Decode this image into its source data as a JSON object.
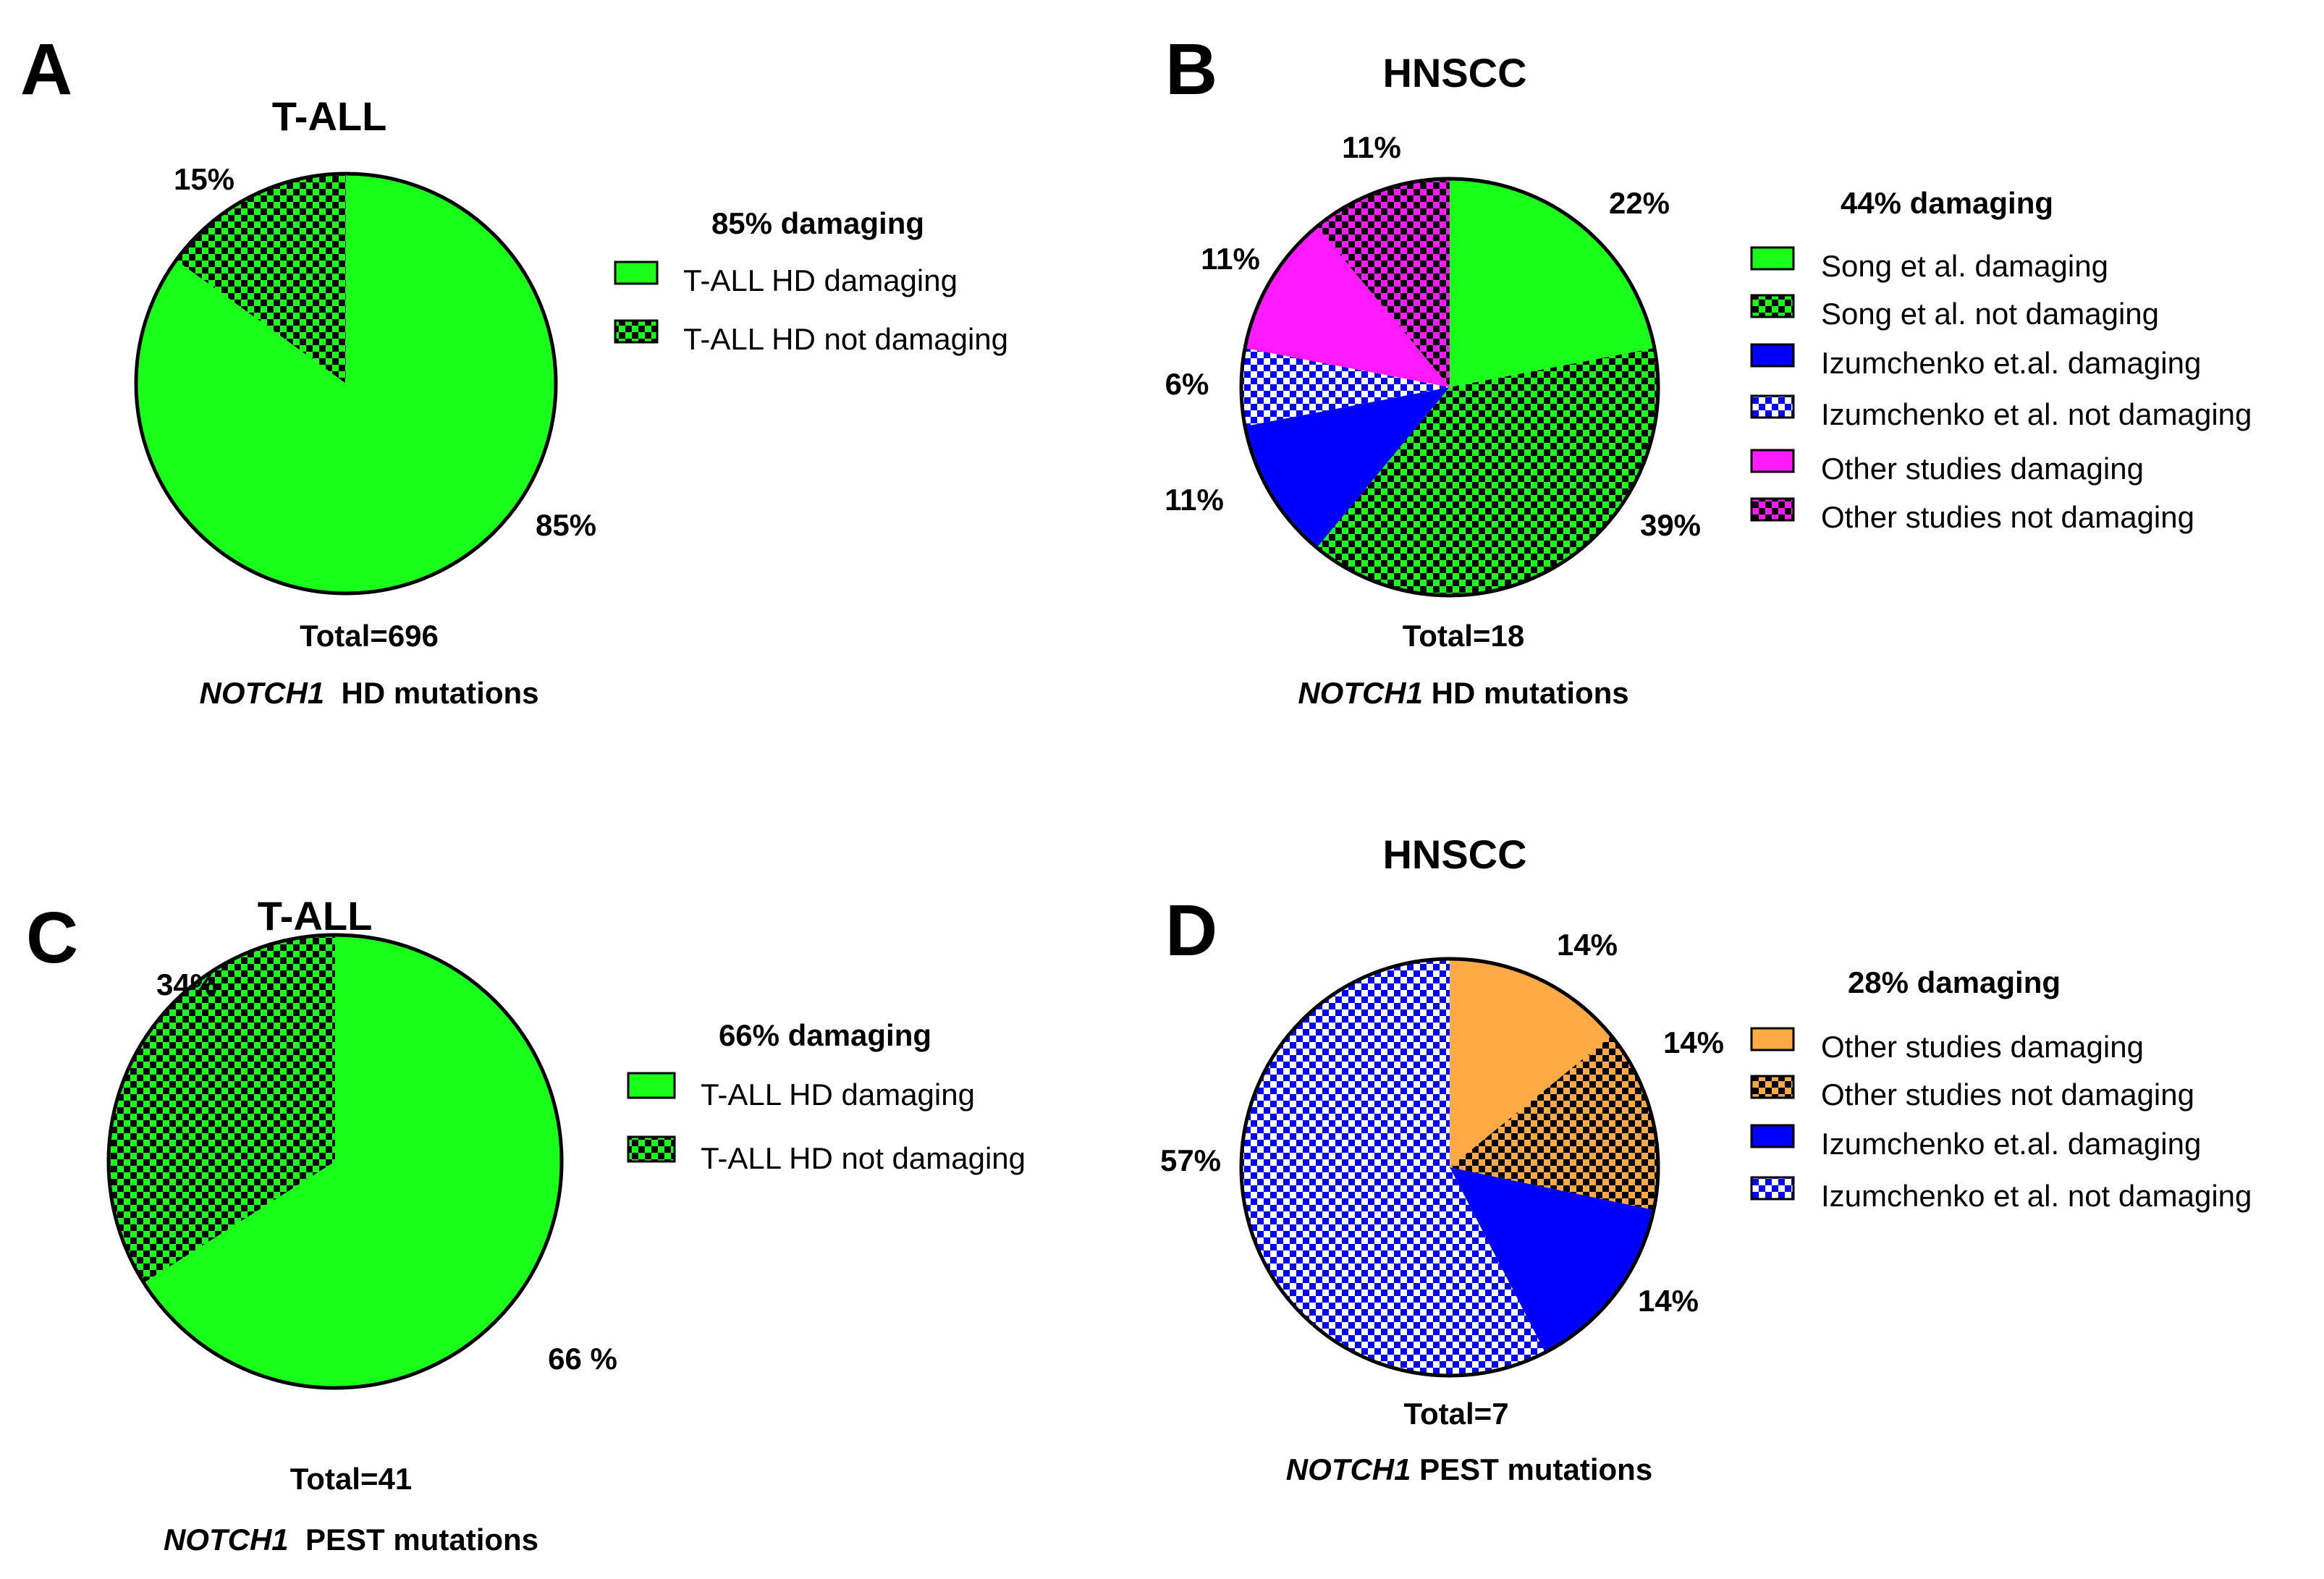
{
  "colors": {
    "green": "#1aff1a",
    "blue": "#0000ff",
    "magenta": "#ff1aff",
    "orange": "#ffaa44",
    "outline": "#000000",
    "light": "#ffffff"
  },
  "chart_data": [
    {
      "type": "pie",
      "id": "A",
      "letter": "A",
      "title": "T-ALL",
      "total": "Total=696",
      "gene": "NOTCH1",
      "subtitle_rest": "  HD mutations",
      "legend_title": "85% damaging",
      "slices": [
        {
          "label": "T-ALL HD damaging",
          "value": 85,
          "display": "85%",
          "color": "#1aff1a",
          "pattern": "solid"
        },
        {
          "label": "T-ALL HD not damaging",
          "value": 15,
          "display": "15%",
          "color": "#1aff1a",
          "pattern": "check"
        }
      ]
    },
    {
      "type": "pie",
      "id": "B",
      "letter": "B",
      "title": "HNSCC",
      "total": "Total=18",
      "gene": "NOTCH1",
      "subtitle_rest": " HD mutations",
      "legend_title": "44% damaging",
      "slices": [
        {
          "label": "Song et al.  damaging",
          "value": 22,
          "display": "22%",
          "color": "#1aff1a",
          "pattern": "solid"
        },
        {
          "label": "Song et al. not damaging",
          "value": 39,
          "display": "39%",
          "color": "#1aff1a",
          "pattern": "check"
        },
        {
          "label": "Izumchenko et.al. damaging",
          "value": 11,
          "display": "11%",
          "color": "#0000ff",
          "pattern": "solid"
        },
        {
          "label": "Izumchenko et al. not damaging",
          "value": 6,
          "display": "6%",
          "color": "#0000ff",
          "pattern": "light"
        },
        {
          "label": "Other studies damaging",
          "value": 11,
          "display": "11%",
          "color": "#ff1aff",
          "pattern": "solid"
        },
        {
          "label": "Other studies not damaging",
          "value": 11,
          "display": "11%",
          "color": "#ff1aff",
          "pattern": "check"
        }
      ]
    },
    {
      "type": "pie",
      "id": "C",
      "letter": "C",
      "title": "T-ALL",
      "total": "Total=41",
      "gene": "NOTCH1",
      "subtitle_rest": "  PEST mutations",
      "legend_title": "66% damaging",
      "slices": [
        {
          "label": "T-ALL HD damaging",
          "value": 66,
          "display": "66 %",
          "color": "#1aff1a",
          "pattern": "solid"
        },
        {
          "label": "T-ALL HD not damaging",
          "value": 34,
          "display": "34%",
          "color": "#1aff1a",
          "pattern": "check"
        }
      ]
    },
    {
      "type": "pie",
      "id": "D",
      "letter": "D",
      "title": "HNSCC",
      "total": "Total=7",
      "gene": "NOTCH1",
      "subtitle_rest": " PEST mutations",
      "legend_title": "28% damaging",
      "slices": [
        {
          "label": "Other studies  damaging",
          "value": 14,
          "display": "14%",
          "color": "#ffaa44",
          "pattern": "solid"
        },
        {
          "label": "Other studies not damaging",
          "value": 14,
          "display": "14%",
          "color": "#ffaa44",
          "pattern": "check"
        },
        {
          "label": "Izumchenko et.al. damaging",
          "value": 14,
          "display": "14%",
          "color": "#0000ff",
          "pattern": "solid"
        },
        {
          "label": "Izumchenko et al. not damaging",
          "value": 57,
          "display": "57%",
          "color": "#0000ff",
          "pattern": "light"
        }
      ]
    }
  ]
}
